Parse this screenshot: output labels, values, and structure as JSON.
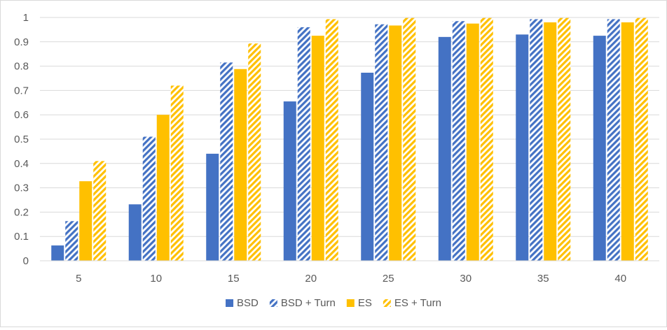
{
  "chart_data": {
    "type": "bar",
    "categories": [
      "5",
      "10",
      "15",
      "20",
      "25",
      "30",
      "35",
      "40"
    ],
    "ylim": [
      0,
      1
    ],
    "yticks": [
      "0",
      "0.1",
      "0.2",
      "0.3",
      "0.4",
      "0.5",
      "0.6",
      "0.7",
      "0.8",
      "0.9",
      "1"
    ],
    "grid": true,
    "legend_position": "bottom",
    "series": [
      {
        "name": "BSD",
        "color": "#4472c4",
        "pattern": "solid",
        "values": [
          0.063,
          0.232,
          0.44,
          0.655,
          0.773,
          0.92,
          0.93,
          0.925
        ]
      },
      {
        "name": "BSD + Turn",
        "color": "#4472c4",
        "pattern": "diagonal-stripes",
        "values": [
          0.163,
          0.51,
          0.815,
          0.96,
          0.972,
          0.985,
          0.993,
          0.993
        ]
      },
      {
        "name": "ES",
        "color": "#ffc000",
        "pattern": "solid",
        "values": [
          0.327,
          0.6,
          0.788,
          0.925,
          0.967,
          0.975,
          0.98,
          0.98
        ]
      },
      {
        "name": "ES + Turn",
        "color": "#ffc000",
        "pattern": "diagonal-stripes",
        "values": [
          0.41,
          0.72,
          0.893,
          0.993,
          0.998,
          0.998,
          0.998,
          0.998
        ]
      }
    ]
  }
}
